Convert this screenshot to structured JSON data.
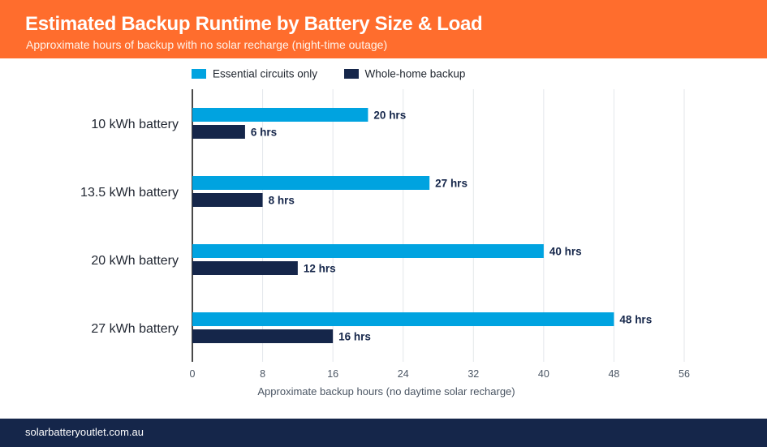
{
  "header": {
    "title": "Estimated Backup Runtime by Battery Size & Load",
    "subtitle": "Approximate hours of backup with no solar recharge (night-time outage)"
  },
  "colors": {
    "header_bg": "#ff6d2d",
    "footer_bg": "#15264a",
    "series_essential": "#00a3e0",
    "series_whole_home": "#15264a",
    "grid": "#e3e6ea",
    "axis": "#1a1a1a"
  },
  "chart_data": {
    "type": "bar",
    "orientation": "horizontal",
    "categories": [
      "10 kWh battery",
      "13.5 kWh battery",
      "20 kWh battery",
      "27 kWh battery"
    ],
    "series": [
      {
        "name": "Essential circuits only",
        "values": [
          20,
          27,
          40,
          48
        ],
        "data_labels": [
          "20 hrs",
          "27 hrs",
          "40 hrs",
          "48 hrs"
        ]
      },
      {
        "name": "Whole-home backup",
        "values": [
          6,
          8,
          12,
          16
        ],
        "data_labels": [
          "6 hrs",
          "8 hrs",
          "12 hrs",
          "16 hrs"
        ]
      }
    ],
    "xlabel": "Approximate backup hours (no daytime solar recharge)",
    "xlim": [
      0,
      56
    ],
    "xticks": [
      0,
      8,
      16,
      24,
      32,
      40,
      48,
      56
    ],
    "grid": "vertical",
    "legend_position": "top"
  },
  "footer": {
    "text": "solarbatteryoutlet.com.au"
  }
}
